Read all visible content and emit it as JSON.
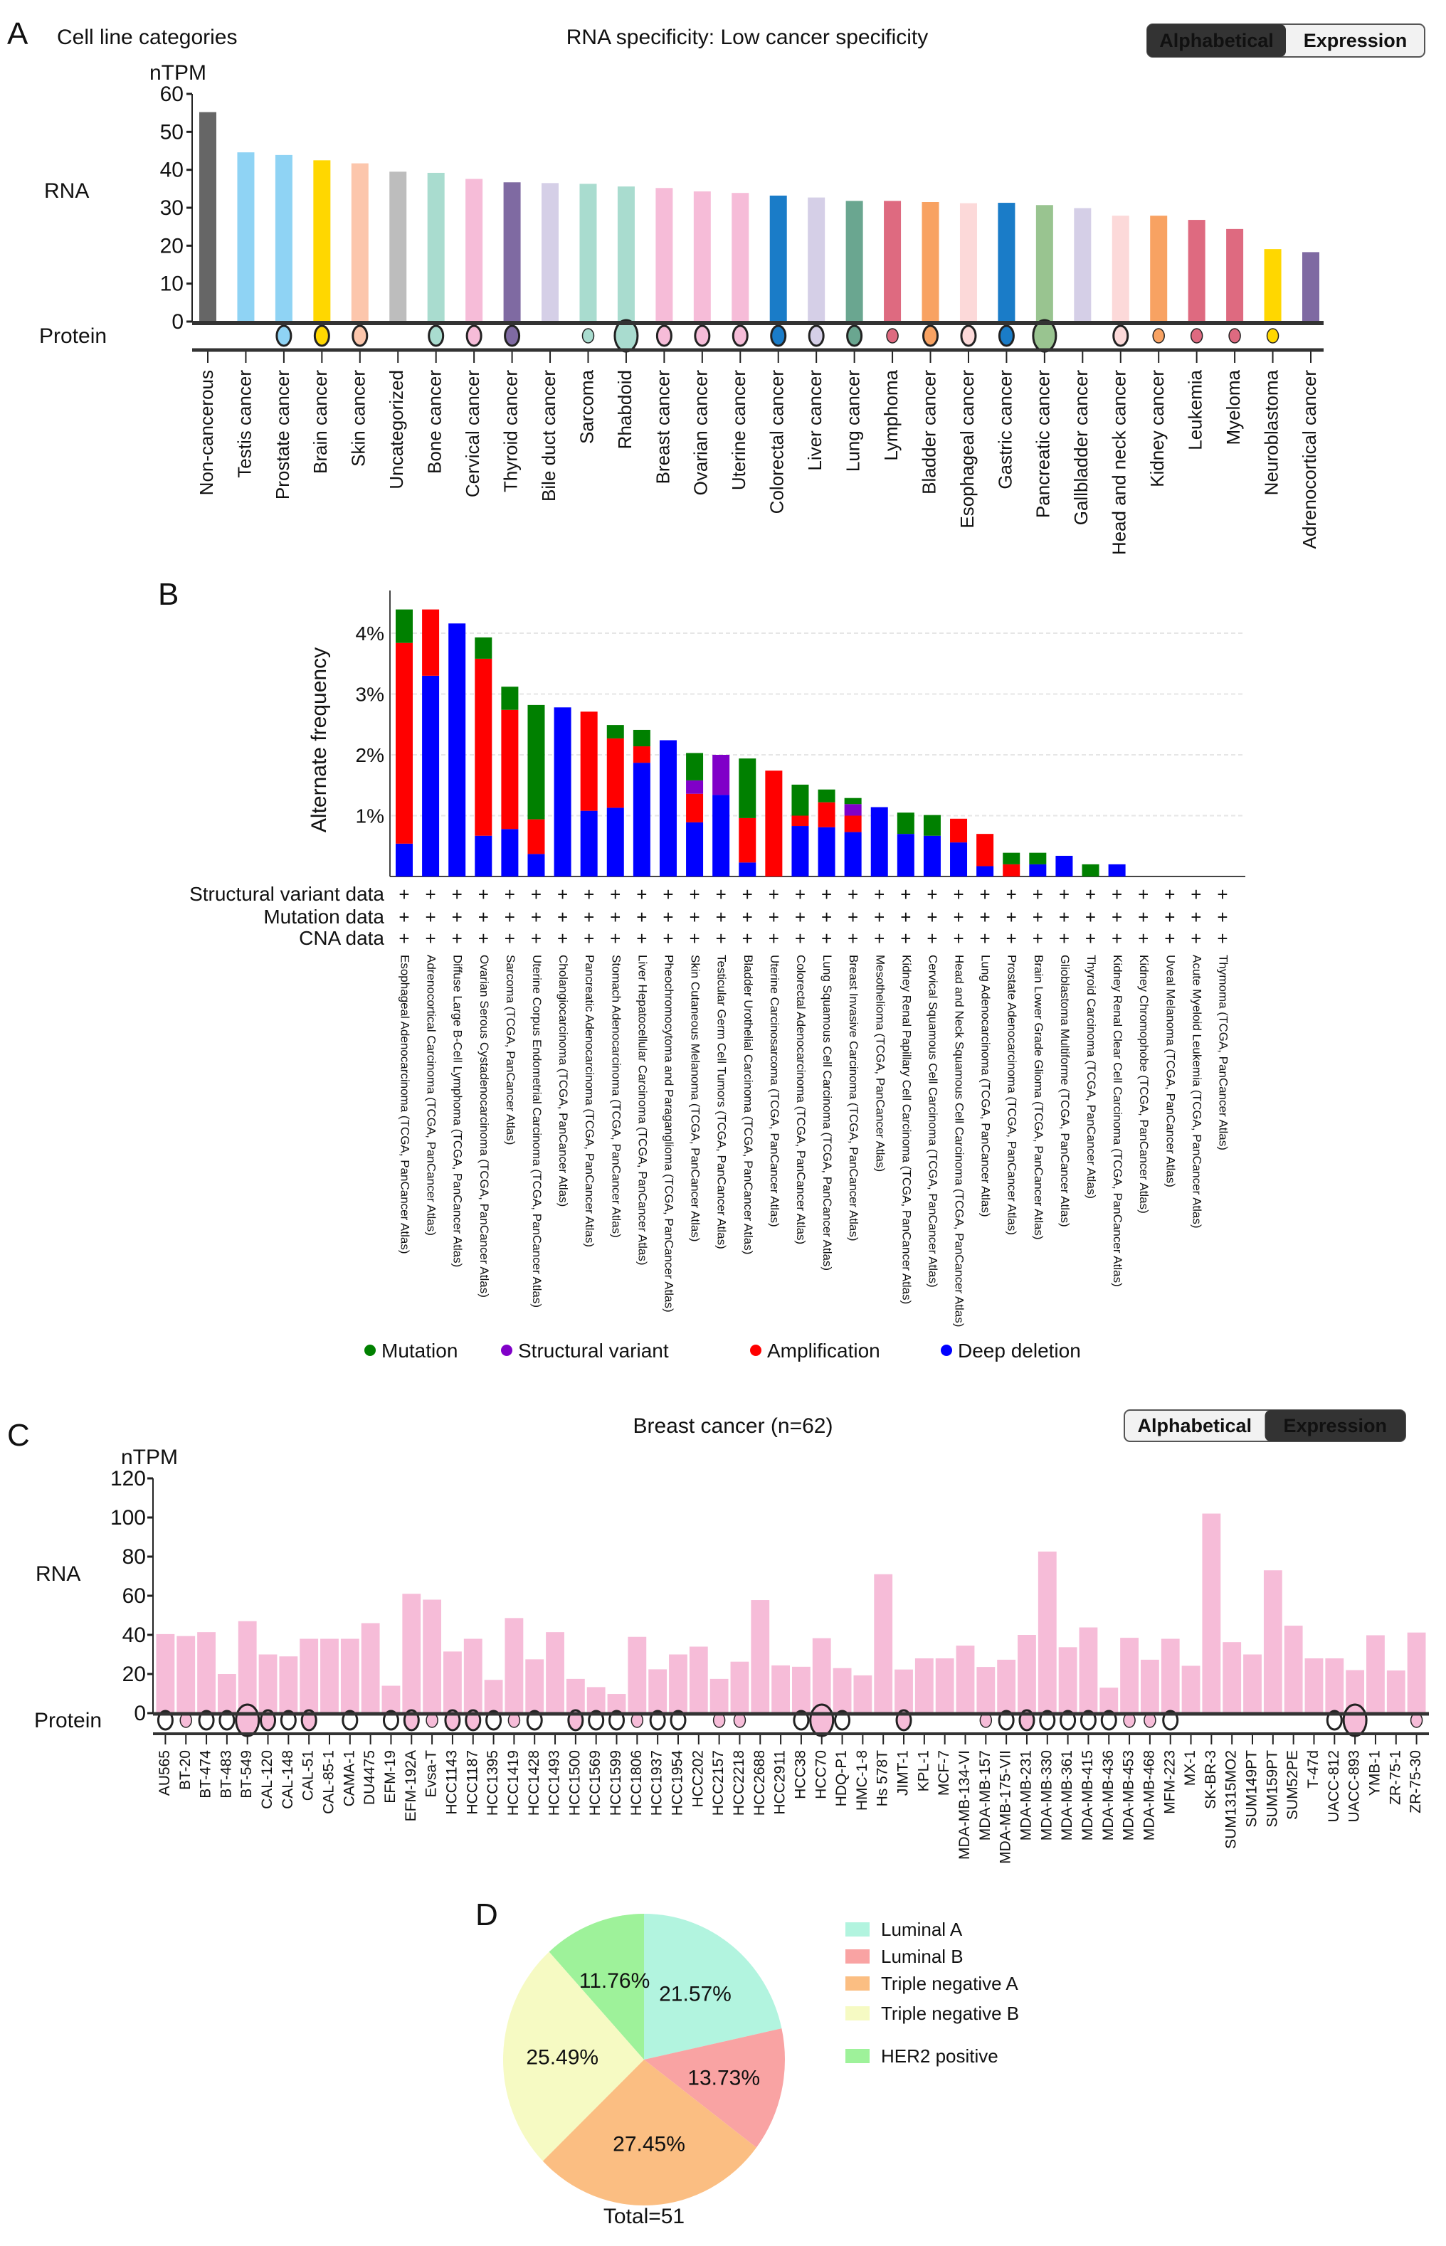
{
  "panel_a": {
    "letter": "A",
    "subtitle": "Cell line categories",
    "title": "RNA specificity: Low cancer specificity",
    "toggle": {
      "alphabetical": "Alphabetical",
      "expression": "Expression",
      "active": "alphabetical"
    },
    "rna_label": "RNA",
    "protein_label": "Protein"
  },
  "panel_b": {
    "letter": "B",
    "row_labels": [
      "Structural variant data",
      "Mutation data",
      "CNA data"
    ],
    "row_mark": "+"
  },
  "panel_c": {
    "letter": "C",
    "title": "Breast cancer (n=62)",
    "toggle": {
      "alphabetical": "Alphabetical",
      "expression": "Expression",
      "active": "expression"
    },
    "rna_label": "RNA",
    "protein_label": "Protein"
  },
  "panel_d": {
    "letter": "D",
    "total_label": "Total=51"
  },
  "chart_data": [
    {
      "id": "A",
      "type": "bar",
      "ylabel": "nTPM",
      "ylim": [
        0,
        60
      ],
      "yticks": [
        "0",
        "10",
        "20",
        "30",
        "40",
        "50",
        "60"
      ],
      "categories": [
        "Non-cancerous",
        "Testis cancer",
        "Prostate cancer",
        "Brain cancer",
        "Skin cancer",
        "Uncategorized",
        "Bone cancer",
        "Cervical cancer",
        "Thyroid cancer",
        "Bile duct cancer",
        "Sarcoma",
        "Rhabdoid",
        "Breast cancer",
        "Ovarian cancer",
        "Uterine cancer",
        "Colorectal cancer",
        "Liver cancer",
        "Lung cancer",
        "Lymphoma",
        "Bladder cancer",
        "Esophageal cancer",
        "Gastric cancer",
        "Pancreatic cancer",
        "Gallbladder cancer",
        "Head and neck cancer",
        "Kidney cancer",
        "Leukemia",
        "Myeloma",
        "Neuroblastoma",
        "Adrenocortical cancer"
      ],
      "values": [
        55.2,
        44.6,
        43.9,
        42.5,
        41.7,
        39.5,
        39.2,
        37.6,
        36.7,
        36.5,
        36.3,
        35.6,
        35.2,
        34.3,
        33.9,
        33.2,
        32.7,
        31.8,
        31.8,
        31.5,
        31.2,
        31.3,
        30.7,
        29.9,
        27.9,
        27.9,
        26.8,
        24.4,
        19.1,
        18.3
      ],
      "colors": [
        "#666666",
        "#8fd3f4",
        "#8fd3f4",
        "#ffd700",
        "#fcc6ac",
        "#bdbdbd",
        "#a9dccf",
        "#f6bcd8",
        "#7f6aa2",
        "#d5cfe7",
        "#a9dccf",
        "#a9dccf",
        "#f6bcd8",
        "#f6bcd8",
        "#f6bcd8",
        "#1a7cc8",
        "#d5cfe7",
        "#6aa690",
        "#de6a80",
        "#f8a262",
        "#fcd9d9",
        "#1a7cc8",
        "#99c490",
        "#d5cfe7",
        "#fcd9d9",
        "#f8a262",
        "#de6a80",
        "#de6a80",
        "#ffd700",
        "#7f6aa2"
      ],
      "protein_levels": [
        "",
        "",
        "m",
        "m",
        "m",
        "",
        "m",
        "m",
        "m",
        "",
        "s",
        "l",
        "m",
        "m",
        "m",
        "m",
        "m",
        "m",
        "s",
        "m",
        "m",
        "m",
        "l",
        "",
        "m",
        "s",
        "s",
        "s",
        "s",
        ""
      ]
    },
    {
      "id": "B",
      "type": "bar",
      "stacked": true,
      "ylabel": "Alternate frequency",
      "ylim": [
        0,
        4.6
      ],
      "yticks": [
        "1%",
        "2%",
        "3%",
        "4%"
      ],
      "grid": true,
      "legend_position": "bottom",
      "categories": [
        "Esophageal Adenocarcinoma (TCGA, PanCancer Atlas)",
        "Adrenocortical Carcinoma (TCGA, PanCancer Atlas)",
        "Diffuse Large B-Cell Lymphoma (TCGA, PanCancer Atlas)",
        "Ovarian Serous Cystadenocarcinoma (TCGA, PanCancer Atlas)",
        "Sarcoma (TCGA, PanCancer Atlas)",
        "Uterine Corpus Endometrial Carcinoma (TCGA, PanCancer Atlas)",
        "Cholangiocarcinoma (TCGA, PanCancer Atlas)",
        "Pancreatic Adenocarcinoma (TCGA, PanCancer Atlas)",
        "Stomach Adenocarcinoma (TCGA, PanCancer Atlas)",
        "Liver Hepatocellular Carcinoma (TCGA, PanCancer Atlas)",
        "Pheochromocytoma and Paraganglioma (TCGA, PanCancer Atlas)",
        "Skin Cutaneous Melanoma (TCGA, PanCancer Atlas)",
        "Testicular Germ Cell Tumors (TCGA, PanCancer Atlas)",
        "Bladder Urothelial Carcinoma (TCGA, PanCancer Atlas)",
        "Uterine Carcinosarcoma (TCGA, PanCancer Atlas)",
        "Colorectal Adenocarcinoma (TCGA, PanCancer Atlas)",
        "Lung Squamous Cell Carcinoma (TCGA, PanCancer Atlas)",
        "Breast Invasive Carcinoma (TCGA, PanCancer Atlas)",
        "Mesothelioma (TCGA, PanCancer Atlas)",
        "Kidney Renal Papillary Cell Carcinoma (TCGA, PanCancer Atlas)",
        "Cervical Squamous Cell Carcinoma (TCGA, PanCancer Atlas)",
        "Head and Neck Squamous Cell Carcinoma (TCGA, PanCancer Atlas)",
        "Lung Adenocarcinoma (TCGA, PanCancer Atlas)",
        "Prostate Adenocarcinoma (TCGA, PanCancer Atlas)",
        "Brain Lower Grade Glioma (TCGA, PanCancer Atlas)",
        "Glioblastoma Multiforme (TCGA, PanCancer Atlas)",
        "Thyroid Carcinoma (TCGA, PanCancer Atlas)",
        "Kidney Renal Clear Cell Carcinoma (TCGA, PanCancer Atlas)",
        "Kidney Chromophobe (TCGA, PanCancer Atlas)",
        "Uveal Melanoma (TCGA, PanCancer Atlas)",
        "Acute Myeloid Leukemia (TCGA, PanCancer Atlas)",
        "Thymoma (TCGA, PanCancer Atlas)"
      ],
      "series": [
        {
          "name": "Deep deletion",
          "color": "#0000ff",
          "values": [
            0.54,
            3.3,
            4.16,
            0.67,
            0.78,
            0.37,
            2.78,
            1.08,
            1.13,
            1.87,
            2.24,
            0.89,
            1.34,
            0.23,
            0,
            0.83,
            0.81,
            0.73,
            1.14,
            0.7,
            0.67,
            0.56,
            0.17,
            0,
            0.2,
            0.34,
            0,
            0.2,
            0,
            0,
            0,
            0
          ]
        },
        {
          "name": "Amplification",
          "color": "#ff0000",
          "values": [
            3.3,
            1.09,
            0,
            2.91,
            1.96,
            0.57,
            0,
            1.63,
            1.14,
            0.27,
            0,
            0.47,
            0,
            0.73,
            1.74,
            0.17,
            0.41,
            0.27,
            0,
            0,
            0,
            0.39,
            0.53,
            0.2,
            0,
            0,
            0,
            0,
            0,
            0,
            0,
            0
          ]
        },
        {
          "name": "Structural variant",
          "color": "#8000c8",
          "values": [
            0,
            0,
            0,
            0,
            0,
            0,
            0,
            0,
            0,
            0,
            0,
            0.22,
            0.66,
            0,
            0,
            0,
            0,
            0.19,
            0,
            0,
            0,
            0,
            0,
            0,
            0,
            0,
            0,
            0,
            0,
            0,
            0,
            0
          ]
        },
        {
          "name": "Mutation",
          "color": "#008000",
          "values": [
            0.55,
            0,
            0,
            0.35,
            0.38,
            1.88,
            0,
            0,
            0.22,
            0.27,
            0,
            0.45,
            0,
            0.98,
            0,
            0.51,
            0.21,
            0.1,
            0,
            0.35,
            0.34,
            0,
            0,
            0.19,
            0.19,
            0,
            0.2,
            0,
            0,
            0,
            0,
            0
          ]
        }
      ],
      "legend": [
        "Mutation",
        "Structural variant",
        "Amplification",
        "Deep deletion"
      ]
    },
    {
      "id": "C",
      "type": "bar",
      "ylabel": "nTPM",
      "ylim": [
        0,
        120
      ],
      "yticks": [
        "0",
        "20",
        "40",
        "60",
        "80",
        "100",
        "120"
      ],
      "color": "#f6bcd8",
      "categories": [
        "AU565",
        "BT-20",
        "BT-474",
        "BT-483",
        "BT-549",
        "CAL-120",
        "CAL-148",
        "CAL-51",
        "CAL-85-1",
        "CAMA-1",
        "DU4475",
        "EFM-19",
        "EFM-192A",
        "Evsa-T",
        "HCC1143",
        "HCC1187",
        "HCC1395",
        "HCC1419",
        "HCC1428",
        "HCC1493",
        "HCC1500",
        "HCC1569",
        "HCC1599",
        "HCC1806",
        "HCC1937",
        "HCC1954",
        "HCC202",
        "HCC2157",
        "HCC2218",
        "HCC2688",
        "HCC2911",
        "HCC38",
        "HCC70",
        "HDQ-P1",
        "HMC-1-8",
        "Hs 578T",
        "JIMT-1",
        "KPL-1",
        "MCF-7",
        "MDA-MB-134-VI",
        "MDA-MB-157",
        "MDA-MB-175-VII",
        "MDA-MB-231",
        "MDA-MB-330",
        "MDA-MB-361",
        "MDA-MB-415",
        "MDA-MB-436",
        "MDA-MB-453",
        "MDA-MB-468",
        "MFM-223",
        "MX-1",
        "SK-BR-3",
        "SUM1315MO2",
        "SUM149PT",
        "SUM159PT",
        "SUM52PE",
        "T-47d",
        "UACC-812",
        "UACC-893",
        "YMB-1",
        "ZR-75-1",
        "ZR-75-30"
      ],
      "values": [
        40.4,
        39.4,
        41.4,
        20,
        47,
        30,
        29,
        38,
        38,
        38,
        46,
        14,
        61,
        58,
        31.5,
        38,
        17,
        48.6,
        27.5,
        41.4,
        17.5,
        13.3,
        9.8,
        39,
        22.4,
        30,
        34,
        17.5,
        26.3,
        57.8,
        24.4,
        23.7,
        38.3,
        23,
        19.3,
        71,
        22.3,
        28,
        28,
        34.5,
        23.6,
        27.3,
        40,
        82.6,
        33.7,
        43.8,
        13,
        38.5,
        27.3,
        38,
        24.2,
        102,
        36.3,
        30,
        73,
        44.7,
        28,
        28,
        22,
        39.8,
        21.8,
        41.2
      ],
      "protein_levels": [
        "o",
        "s",
        "o",
        "o",
        "l",
        "m",
        "o",
        "m",
        "",
        "o",
        "",
        "o",
        "m",
        "s",
        "m",
        "m",
        "o",
        "s",
        "o",
        "",
        "m",
        "o",
        "o",
        "s",
        "o",
        "o",
        "",
        "s",
        "s",
        "",
        "",
        "o",
        "l",
        "o",
        "",
        "",
        "m",
        "",
        "",
        "",
        "s",
        "o",
        "m",
        "o",
        "o",
        "o",
        "o",
        "s",
        "s",
        "o",
        "",
        "",
        "",
        "",
        "",
        "",
        "",
        "o",
        "l",
        "",
        "",
        "s"
      ]
    },
    {
      "id": "D",
      "type": "pie",
      "labels": [
        "Luminal A",
        "Luminal B",
        "Triple negative A",
        "Triple negative B",
        "HER2 positive"
      ],
      "values": [
        21.57,
        13.73,
        27.45,
        25.49,
        11.76
      ],
      "value_labels": [
        "21.57%",
        "13.73%",
        "27.45%",
        "25.49%",
        "11.76%"
      ],
      "colors": [
        "#b2f4df",
        "#f9a3a3",
        "#fbbe82",
        "#f6fac3",
        "#9ef29a"
      ],
      "total": 51,
      "legend_position": "right"
    }
  ]
}
